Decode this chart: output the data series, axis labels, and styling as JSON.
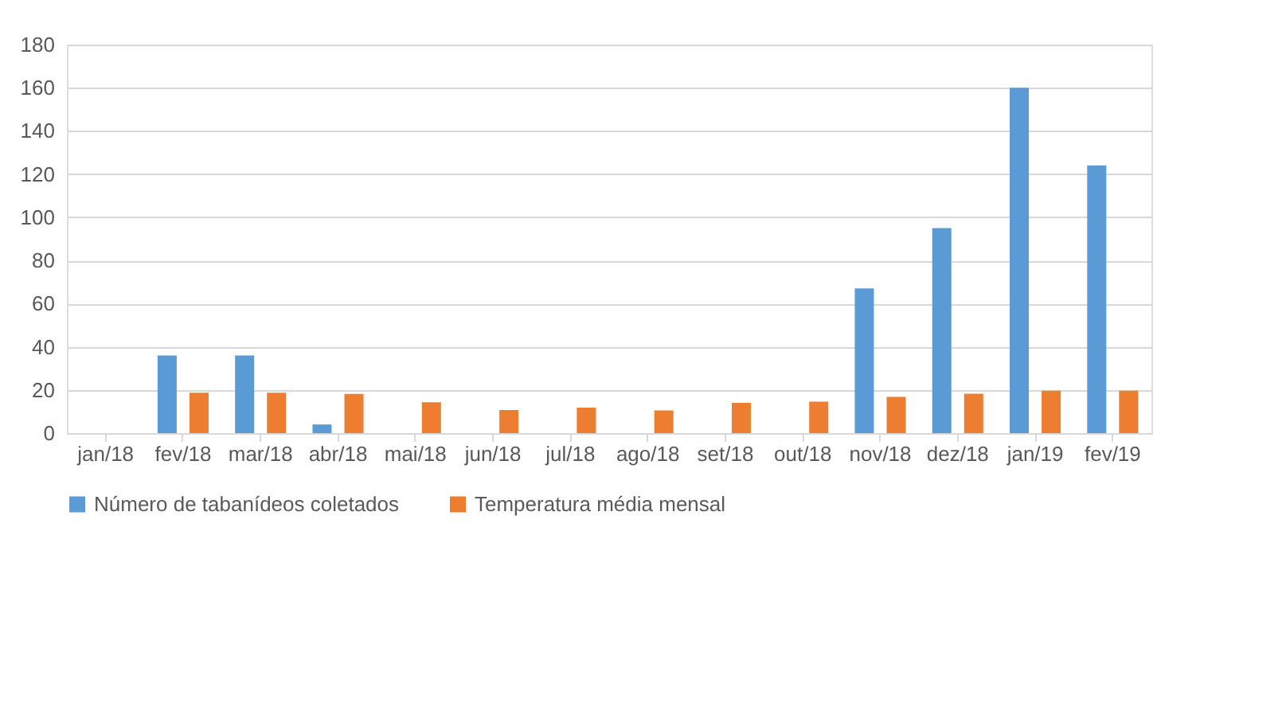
{
  "chart_data": {
    "type": "bar",
    "categories": [
      "jan/18",
      "fev/18",
      "mar/18",
      "abr/18",
      "mai/18",
      "jun/18",
      "jul/18",
      "ago/18",
      "set/18",
      "out/18",
      "nov/18",
      "dez/18",
      "jan/19",
      "fev/19"
    ],
    "series": [
      {
        "name": "Número de tabanídeos coletados",
        "color": "#5b9bd5",
        "values": [
          null,
          36,
          36,
          4,
          null,
          null,
          null,
          null,
          null,
          null,
          67,
          95,
          160,
          124
        ]
      },
      {
        "name": "Temperatura média mensal",
        "color": "#ed7d31",
        "values": [
          null,
          18.7,
          18.7,
          18.2,
          14.3,
          10.7,
          11.8,
          10.5,
          14,
          14.6,
          16.8,
          18.3,
          19.6,
          19.6
        ]
      }
    ],
    "ylim": [
      0,
      180
    ],
    "yticks": [
      0,
      20,
      40,
      60,
      80,
      100,
      120,
      140,
      160,
      180
    ],
    "grid": "y",
    "legend": "bottom"
  }
}
